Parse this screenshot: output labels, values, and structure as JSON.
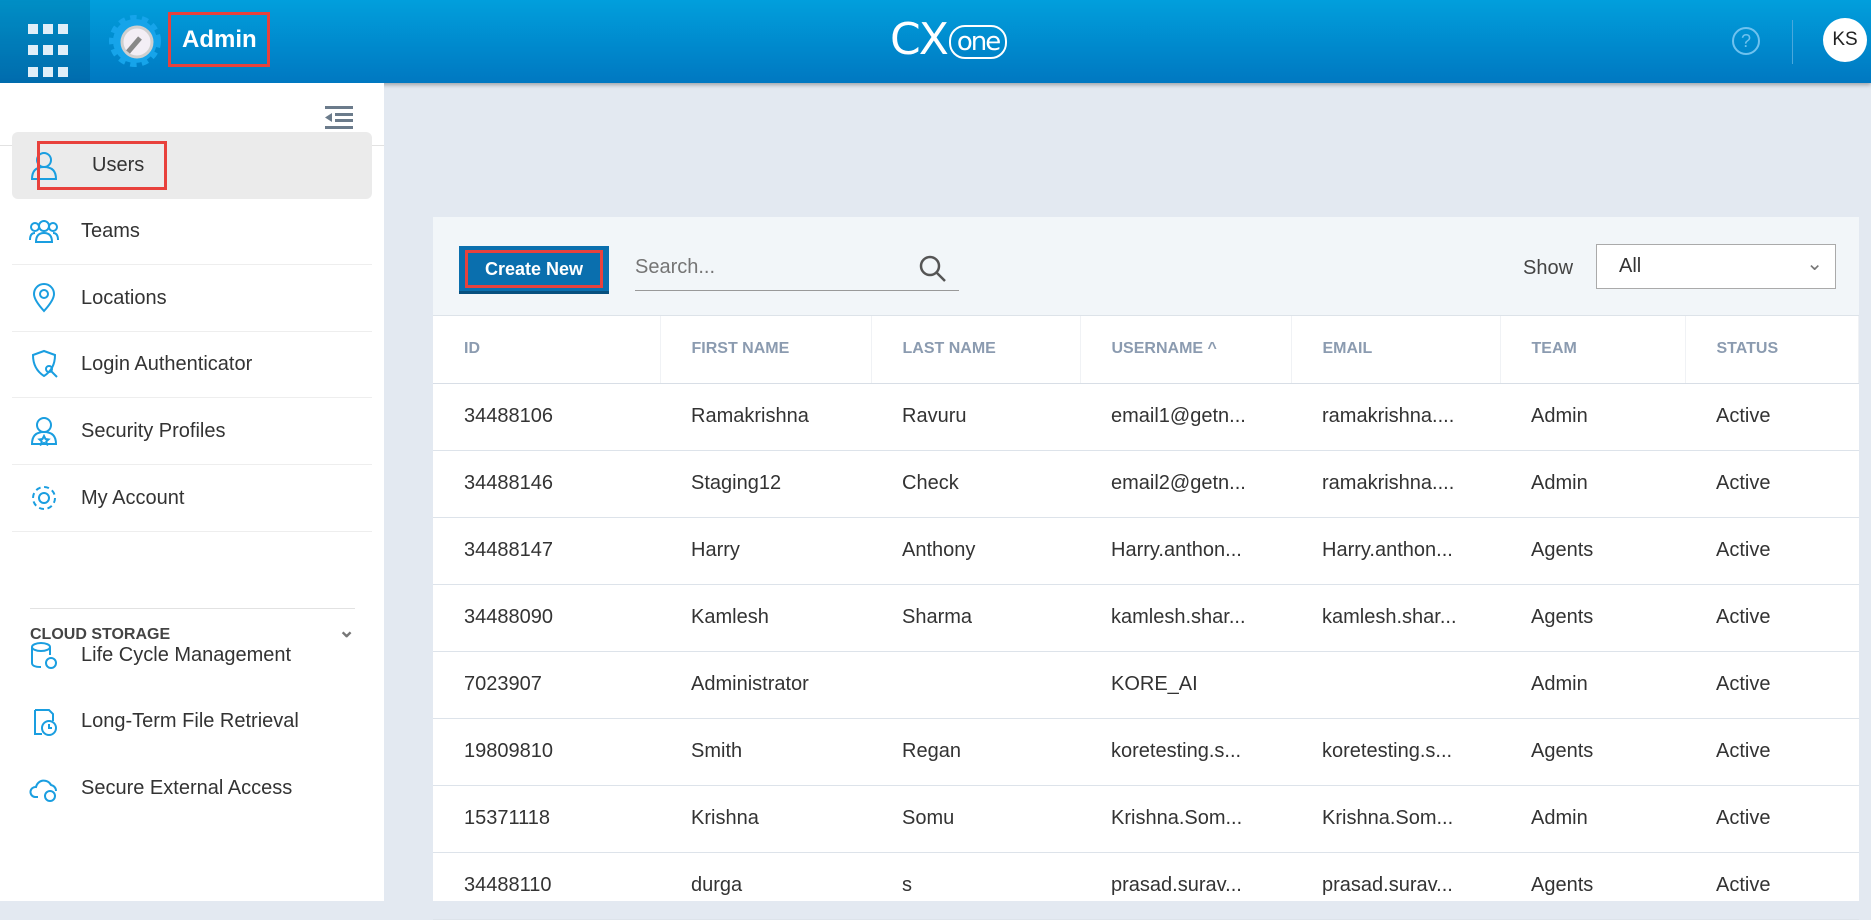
{
  "header": {
    "app_title": "Admin",
    "logo": "CXone",
    "logo_main": "CX",
    "logo_sub": "one",
    "help_icon": "?",
    "user_initials": "KS",
    "accent": "#0090d4"
  },
  "sidebar": {
    "items": [
      {
        "label": "Users",
        "icon": "user-icon",
        "selected": true
      },
      {
        "label": "Teams",
        "icon": "teams-icon"
      },
      {
        "label": "Locations",
        "icon": "location-pin-icon"
      },
      {
        "label": "Login Authenticator",
        "icon": "shield-key-icon"
      },
      {
        "label": "Security Profiles",
        "icon": "security-profile-icon"
      },
      {
        "label": "My Account",
        "icon": "gear-icon"
      }
    ],
    "section": "CLOUD STORAGE",
    "section_items": [
      {
        "label": "Life Cycle Management",
        "icon": "database-gear-icon"
      },
      {
        "label": "Long-Term File Retrieval",
        "icon": "file-clock-icon"
      },
      {
        "label": "Secure External Access",
        "icon": "cloud-gear-icon"
      }
    ]
  },
  "toolbar": {
    "create_label": "Create New",
    "search_placeholder": "Search...",
    "show_label": "Show",
    "show_value": "All"
  },
  "table": {
    "columns": [
      "ID",
      "FIRST NAME",
      "LAST NAME",
      "USERNAME ^",
      "EMAIL",
      "TEAM",
      "STATUS"
    ],
    "rows": [
      [
        "34488106",
        "Ramakrishna",
        "Ravuru",
        "email1@getn...",
        "ramakrishna....",
        "Admin",
        "Active"
      ],
      [
        "34488146",
        "Staging12",
        "Check",
        "email2@getn...",
        "ramakrishna....",
        "Admin",
        "Active"
      ],
      [
        "34488147",
        "Harry",
        "Anthony",
        "Harry.anthon...",
        "Harry.anthon...",
        "Agents",
        "Active"
      ],
      [
        "34488090",
        "Kamlesh",
        "Sharma",
        "kamlesh.shar...",
        "kamlesh.shar...",
        "Agents",
        "Active"
      ],
      [
        "7023907",
        "Administrator",
        "",
        "KORE_AI",
        "",
        "Admin",
        "Active"
      ],
      [
        "19809810",
        "Smith",
        "Regan",
        "koretesting.s...",
        "koretesting.s...",
        "Agents",
        "Active"
      ],
      [
        "15371118",
        "Krishna",
        "Somu",
        "Krishna.Som...",
        "Krishna.Som...",
        "Admin",
        "Active"
      ],
      [
        "34488110",
        "durga",
        "s",
        "prasad.surav...",
        "prasad.surav...",
        "Agents",
        "Active"
      ]
    ]
  }
}
